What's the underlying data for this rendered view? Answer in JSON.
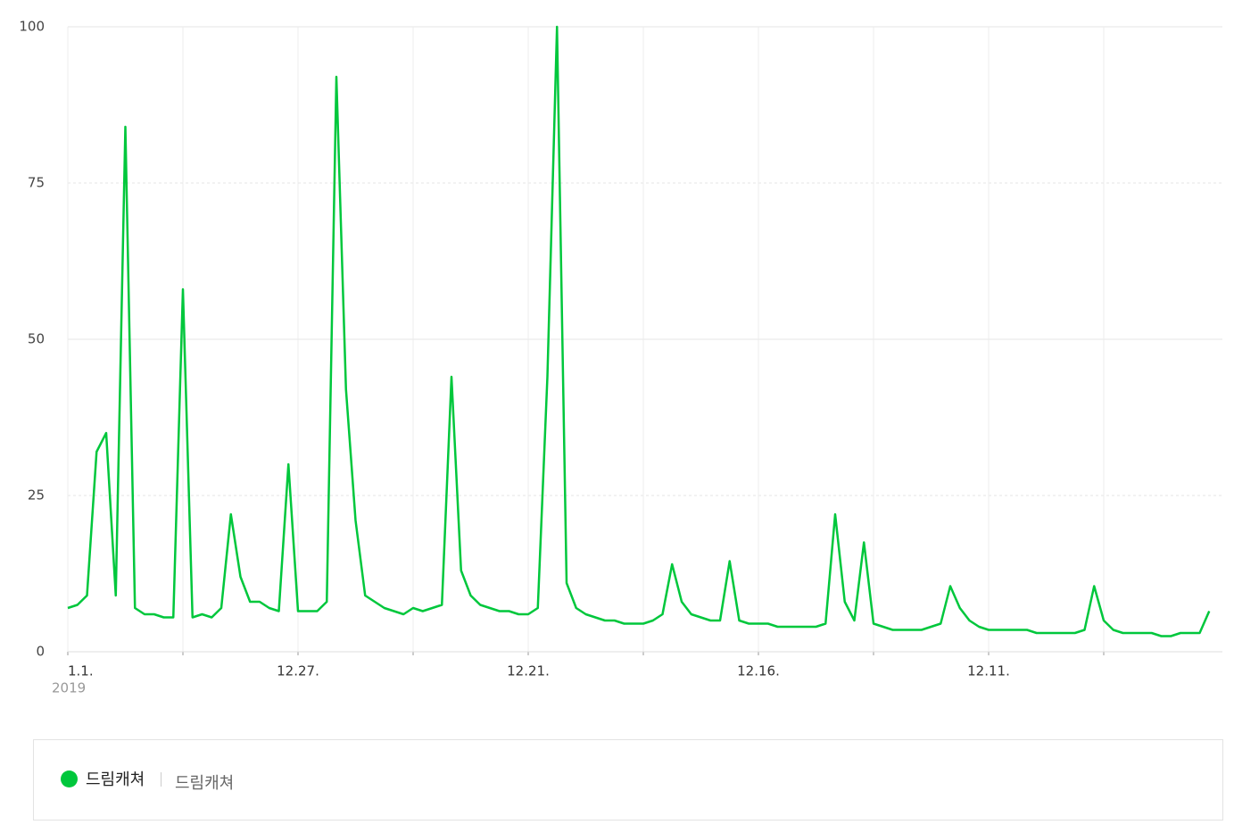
{
  "chart_data": {
    "type": "line",
    "categories": [
      "1.1.",
      null,
      null,
      null,
      null,
      null,
      null,
      null,
      null,
      null,
      null,
      null,
      null,
      null,
      null,
      null,
      null,
      null,
      null,
      null,
      null,
      null,
      null,
      null,
      "12.27.",
      null,
      null,
      null,
      null,
      null,
      null,
      null,
      null,
      null,
      null,
      null,
      null,
      null,
      null,
      null,
      null,
      null,
      null,
      null,
      null,
      null,
      null,
      null,
      "12.21.",
      null,
      null,
      null,
      null,
      null,
      null,
      null,
      null,
      null,
      null,
      null,
      null,
      null,
      null,
      null,
      null,
      null,
      null,
      null,
      null,
      null,
      null,
      null,
      "12.16.",
      null,
      null,
      null,
      null,
      null,
      null,
      null,
      null,
      null,
      null,
      null,
      null,
      null,
      null,
      null,
      null,
      null,
      null,
      null,
      null,
      null,
      null,
      null,
      "12.11.",
      null,
      null,
      null,
      null,
      null,
      null,
      null,
      null,
      null,
      null,
      null,
      null,
      null,
      null,
      null,
      null,
      null,
      null,
      null,
      null,
      null,
      null,
      null
    ],
    "x_sublabel": "2019",
    "series": [
      {
        "name": "드림캐쳐",
        "color": "#00c73c",
        "values": [
          7,
          7.5,
          9,
          32,
          35,
          9,
          84,
          7,
          6,
          6,
          5.5,
          5.5,
          58,
          5.5,
          6,
          5.5,
          7,
          22,
          12,
          8,
          8,
          7,
          6.5,
          30,
          6.5,
          6.5,
          6.5,
          8,
          92,
          42,
          21,
          9,
          8,
          7,
          6.5,
          6,
          7,
          6.5,
          7,
          7.5,
          44,
          13,
          9,
          7.5,
          7,
          6.5,
          6.5,
          6,
          6,
          7,
          44,
          100,
          11,
          7,
          6,
          5.5,
          5,
          5,
          4.5,
          4.5,
          4.5,
          5,
          6,
          14,
          8,
          6,
          5.5,
          5,
          5,
          14.5,
          5,
          4.5,
          4.5,
          4.5,
          4,
          4,
          4,
          4,
          4,
          4.5,
          22,
          8,
          5,
          17.5,
          4.5,
          4,
          3.5,
          3.5,
          3.5,
          3.5,
          4,
          4.5,
          10.5,
          7,
          5,
          4,
          3.5,
          3.5,
          3.5,
          3.5,
          3.5,
          3,
          3,
          3,
          3,
          3,
          3.5,
          10.5,
          5,
          3.5,
          3,
          3,
          3,
          3,
          2.5,
          2.5,
          3,
          3,
          3,
          6.5
        ]
      }
    ],
    "legend_detail": "드림캐쳐",
    "ylim": [
      0,
      100
    ],
    "yticks": [
      0,
      25,
      50,
      75,
      100
    ],
    "grid": true
  }
}
